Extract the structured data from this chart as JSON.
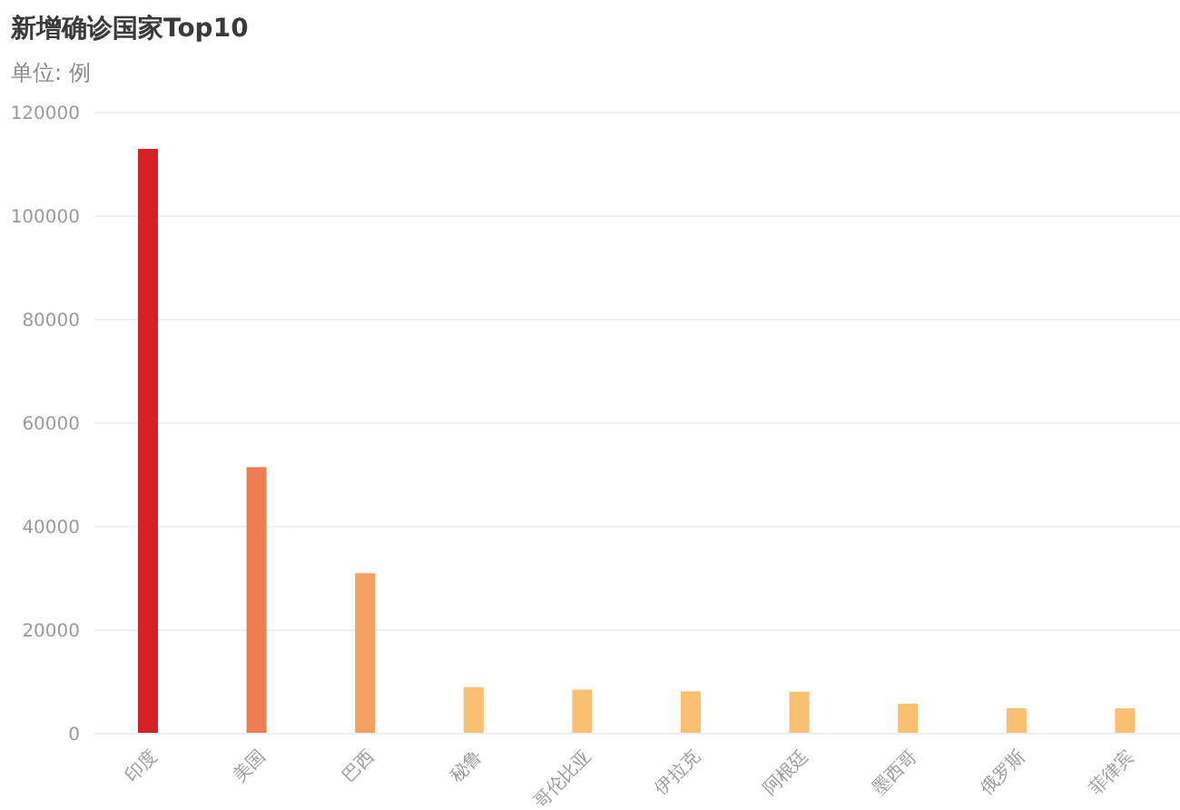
{
  "chart_data": {
    "type": "bar",
    "title": "新增确诊国家Top10",
    "subtitle": "单位: 例",
    "categories": [
      "印度",
      "美国",
      "巴西",
      "秘鲁",
      "哥伦比亚",
      "伊拉克",
      "阿根廷",
      "墨西哥",
      "俄罗斯",
      "菲律宾"
    ],
    "values": [
      113000,
      51500,
      31000,
      9000,
      8500,
      8200,
      8100,
      5800,
      4900,
      4900
    ],
    "colors": [
      "#d42027",
      "#ef7d52",
      "#f4a263",
      "#f8c070",
      "#f8c070",
      "#f8c070",
      "#f8c070",
      "#f8c070",
      "#f8c070",
      "#f8c070"
    ],
    "ylim": [
      0,
      120000
    ],
    "yticks": [
      0,
      20000,
      40000,
      60000,
      80000,
      100000,
      120000
    ],
    "grid": "y"
  }
}
